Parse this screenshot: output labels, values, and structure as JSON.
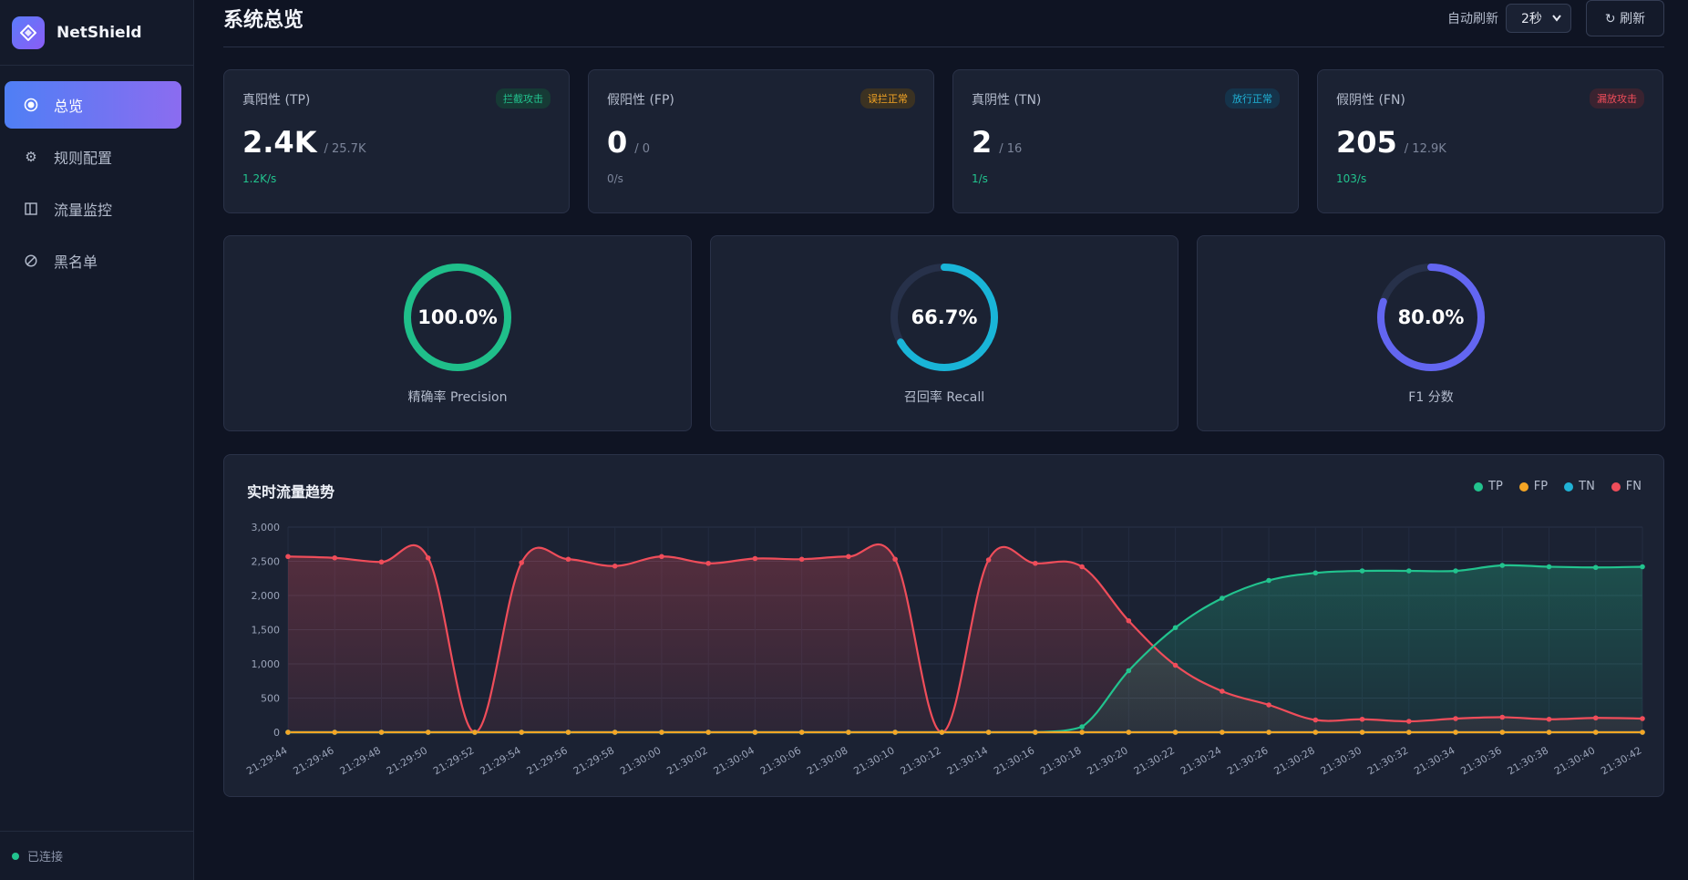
{
  "brand": {
    "name": "NetShield",
    "icon": "diamond-logo"
  },
  "nav": [
    {
      "label": "总览",
      "icon": "overview-circle-icon",
      "active": true
    },
    {
      "label": "规则配置",
      "icon": "gear-icon",
      "active": false
    },
    {
      "label": "流量监控",
      "icon": "panel-icon",
      "active": false
    },
    {
      "label": "黑名单",
      "icon": "block-icon",
      "active": false
    }
  ],
  "status": {
    "text": "已连接",
    "color": "#22c38e"
  },
  "header": {
    "title": "系统总览",
    "auto_refresh_label": "自动刷新",
    "auto_refresh_value": "2秒",
    "refresh_button": "↻ 刷新"
  },
  "stats": [
    {
      "label": "真阳性 (TP)",
      "badge": "拦截攻击",
      "badge_color": "#22c38e",
      "badge_bg": "#163a35",
      "value": "2.4K",
      "total": "/ 25.7K",
      "rate": "1.2K/s",
      "rate_color": "#22c38e"
    },
    {
      "label": "假阳性 (FP)",
      "badge": "误拦正常",
      "badge_color": "#f5a524",
      "badge_bg": "#3b3222",
      "value": "0",
      "total": "/ 0",
      "rate": "0/s",
      "rate_color": "#7c859a"
    },
    {
      "label": "真阴性 (TN)",
      "badge": "放行正常",
      "badge_color": "#20b2d6",
      "badge_bg": "#15334a",
      "value": "2",
      "total": "/ 16",
      "rate": "1/s",
      "rate_color": "#22c38e"
    },
    {
      "label": "假阴性 (FN)",
      "badge": "漏放攻击",
      "badge_color": "#ef4d5a",
      "badge_bg": "#3a2330",
      "value": "205",
      "total": "/ 12.9K",
      "rate": "103/s",
      "rate_color": "#22c38e"
    }
  ],
  "gauges": [
    {
      "value_text": "100.0%",
      "fraction": 1.0,
      "label": "精确率 Precision",
      "color": "#1fbf8a"
    },
    {
      "value_text": "66.7%",
      "fraction": 0.667,
      "label": "召回率 Recall",
      "color": "#19b5d8"
    },
    {
      "value_text": "80.0%",
      "fraction": 0.8,
      "label": "F1 分数",
      "color": "#6366f1"
    }
  ],
  "chart": {
    "title": "实时流量趋势",
    "legend": [
      {
        "name": "TP",
        "color": "#22c38e"
      },
      {
        "name": "FP",
        "color": "#f5a524"
      },
      {
        "name": "TN",
        "color": "#20b2d6"
      },
      {
        "name": "FN",
        "color": "#ef4d5a"
      }
    ]
  },
  "chart_data": {
    "type": "area",
    "title": "实时流量趋势",
    "ylim": [
      0,
      3000
    ],
    "y_ticks": [
      "3,000",
      "2,500",
      "2,000",
      "1,500",
      "1,000",
      "500",
      "0"
    ],
    "y_tick_values": [
      3000,
      2500,
      2000,
      1500,
      1000,
      500,
      0
    ],
    "grid": true,
    "legend_position": "top-right",
    "x": [
      "21:29:44",
      "21:29:46",
      "21:29:48",
      "21:29:50",
      "21:29:52",
      "21:29:54",
      "21:29:56",
      "21:29:58",
      "21:30:00",
      "21:30:02",
      "21:30:04",
      "21:30:06",
      "21:30:08",
      "21:30:10",
      "21:30:12",
      "21:30:14",
      "21:30:16",
      "21:30:18",
      "21:30:20",
      "21:30:22",
      "21:30:24",
      "21:30:26",
      "21:30:28",
      "21:30:30",
      "21:30:32",
      "21:30:34",
      "21:30:36",
      "21:30:38",
      "21:30:40",
      "21:30:42"
    ],
    "series": [
      {
        "name": "TP",
        "color": "#22c38e",
        "fill": true,
        "values": [
          0,
          0,
          0,
          0,
          0,
          0,
          0,
          0,
          0,
          0,
          0,
          0,
          0,
          0,
          0,
          0,
          0,
          80,
          900,
          1530,
          1960,
          2220,
          2330,
          2360,
          2360,
          2360,
          2440,
          2420,
          2410,
          2420
        ]
      },
      {
        "name": "FP",
        "color": "#f5a524",
        "fill": false,
        "values": [
          0,
          0,
          0,
          0,
          0,
          0,
          0,
          0,
          0,
          0,
          0,
          0,
          0,
          0,
          0,
          0,
          0,
          0,
          0,
          0,
          0,
          0,
          0,
          0,
          0,
          0,
          0,
          0,
          0,
          0
        ]
      },
      {
        "name": "TN",
        "color": "#20b2d6",
        "fill": false,
        "values": [
          0,
          0,
          0,
          0,
          0,
          0,
          0,
          0,
          0,
          0,
          0,
          0,
          0,
          0,
          0,
          0,
          0,
          0,
          0,
          0,
          0,
          0,
          0,
          0,
          0,
          0,
          0,
          0,
          0,
          0
        ]
      },
      {
        "name": "FN",
        "color": "#ef4d5a",
        "fill": true,
        "values": [
          2570,
          2550,
          2490,
          2550,
          0,
          2480,
          2530,
          2430,
          2570,
          2470,
          2540,
          2530,
          2570,
          2530,
          0,
          2520,
          2470,
          2420,
          1630,
          980,
          600,
          400,
          180,
          190,
          160,
          200,
          220,
          190,
          210,
          200
        ]
      }
    ]
  }
}
